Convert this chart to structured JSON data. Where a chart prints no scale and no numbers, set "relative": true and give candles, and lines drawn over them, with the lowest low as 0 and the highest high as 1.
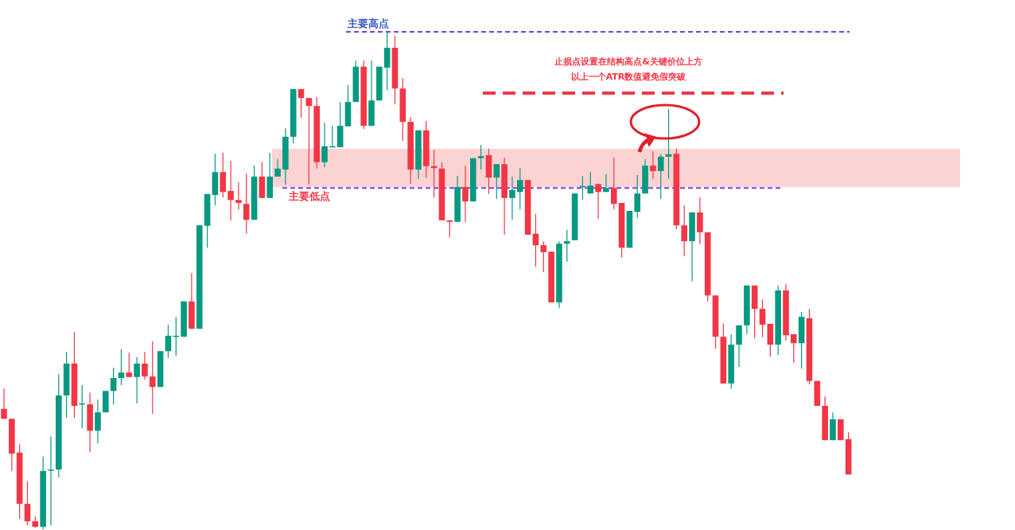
{
  "chart_data": {
    "type": "candlestick",
    "relative": true,
    "categories": [
      null,
      null,
      null,
      null,
      null,
      null,
      null,
      null,
      null,
      null,
      null,
      null,
      null,
      null,
      null,
      null,
      null,
      null,
      null,
      null,
      null,
      null,
      null,
      null,
      null,
      null,
      null,
      null,
      null,
      null,
      null,
      null,
      null,
      null,
      null,
      null,
      null,
      null,
      null,
      null,
      null,
      null,
      null,
      null,
      null,
      null,
      null,
      null,
      null,
      null,
      null,
      null,
      null,
      null,
      null,
      null,
      null,
      null,
      null,
      null,
      null,
      null,
      null,
      null,
      null,
      null,
      null,
      null,
      null,
      null,
      null,
      null,
      null,
      null,
      null,
      null,
      null,
      null,
      null,
      null,
      null,
      null,
      null,
      null,
      null,
      null,
      null,
      null,
      null,
      null,
      null,
      null,
      null,
      null,
      null,
      null,
      null,
      null,
      null,
      null,
      null,
      null,
      null,
      null,
      null,
      null,
      null,
      null,
      null
    ],
    "ohlc": [
      [
        0.242,
        0.283,
        0.222,
        0.222
      ],
      [
        0.222,
        0.222,
        0.117,
        0.152
      ],
      [
        0.154,
        0.171,
        0.021,
        0.051
      ],
      [
        0.051,
        0.096,
        0.008,
        0.016
      ],
      [
        0.016,
        0.026,
        0.003,
        0.005
      ],
      [
        0.005,
        0.146,
        0,
        0.117
      ],
      [
        0.118,
        0.187,
        0.008,
        0.12
      ],
      [
        0.12,
        0.312,
        0.104,
        0.269
      ],
      [
        0.269,
        0.357,
        0.224,
        0.333
      ],
      [
        0.333,
        0.397,
        0.224,
        0.248
      ],
      [
        0.251,
        0.29,
        0.203,
        0.253
      ],
      [
        0.251,
        0.275,
        0.155,
        0.198
      ],
      [
        0.198,
        0.261,
        0.173,
        0.235
      ],
      [
        0.235,
        0.278,
        0.235,
        0.278
      ],
      [
        0.278,
        0.325,
        0.251,
        0.304
      ],
      [
        0.304,
        0.362,
        0.29,
        0.315
      ],
      [
        0.315,
        0.355,
        0.306,
        0.306
      ],
      [
        0.306,
        0.346,
        0.253,
        0.333
      ],
      [
        0.333,
        0.357,
        0.301,
        0.307
      ],
      [
        0.307,
        0.378,
        0.232,
        0.286
      ],
      [
        0.286,
        0.358,
        0.286,
        0.358
      ],
      [
        0.358,
        0.411,
        0.344,
        0.389
      ],
      [
        0.387,
        0.427,
        0.349,
        0.389
      ],
      [
        0.387,
        0.458,
        0.387,
        0.458
      ],
      [
        0.458,
        0.515,
        0.403,
        0.403
      ],
      [
        0.403,
        0.611,
        0.403,
        0.611
      ],
      [
        0.61,
        0.674,
        0.566,
        0.674
      ],
      [
        0.672,
        0.755,
        0.651,
        0.718
      ],
      [
        0.718,
        0.757,
        0.667,
        0.678
      ],
      [
        0.68,
        0.741,
        0.621,
        0.662
      ],
      [
        0.662,
        0.698,
        0.643,
        0.656
      ],
      [
        0.654,
        0.715,
        0.594,
        0.622
      ],
      [
        0.622,
        0.731,
        0.622,
        0.709
      ],
      [
        0.709,
        0.738,
        0.666,
        0.666
      ],
      [
        0.666,
        0.757,
        0.666,
        0.709
      ],
      [
        0.709,
        0.744,
        0.709,
        0.725
      ],
      [
        0.723,
        0.806,
        0.693,
        0.789
      ],
      [
        0.789,
        0.885,
        0.776,
        0.885
      ],
      [
        0.885,
        0.885,
        0.827,
        0.867
      ],
      [
        0.867,
        0.867,
        0.693,
        0.851
      ],
      [
        0.851,
        0.869,
        0.725,
        0.738
      ],
      [
        0.738,
        0.818,
        0.728,
        0.77
      ],
      [
        0.768,
        0.811,
        0.768,
        0.77
      ],
      [
        0.768,
        0.859,
        0.768,
        0.811
      ],
      [
        0.81,
        0.893,
        0.81,
        0.859
      ],
      [
        0.859,
        0.942,
        0.859,
        0.93
      ],
      [
        0.93,
        0.942,
        0.805,
        0.811
      ],
      [
        0.811,
        0.942,
        0.811,
        0.862
      ],
      [
        0.862,
        0.93,
        0.862,
        0.93
      ],
      [
        0.928,
        1,
        0.883,
        0.968
      ],
      [
        0.968,
        0.992,
        0.854,
        0.886
      ],
      [
        0.886,
        0.907,
        0.781,
        0.819
      ],
      [
        0.819,
        0.829,
        0.694,
        0.723
      ],
      [
        0.723,
        0.802,
        0.704,
        0.802
      ],
      [
        0.802,
        0.821,
        0.707,
        0.73
      ],
      [
        0.73,
        0.762,
        0.667,
        0.726
      ],
      [
        0.725,
        0.738,
        0.621,
        0.621
      ],
      [
        0.621,
        0.621,
        0.587,
        0.618
      ],
      [
        0.618,
        0.71,
        0.618,
        0.688
      ],
      [
        0.688,
        0.731,
        0.618,
        0.659
      ],
      [
        0.659,
        0.746,
        0.659,
        0.746
      ],
      [
        0.746,
        0.773,
        0.723,
        0.75
      ],
      [
        0.752,
        0.765,
        0.674,
        0.707
      ],
      [
        0.707,
        0.734,
        0.664,
        0.734
      ],
      [
        0.734,
        0.747,
        0.592,
        0.666
      ],
      [
        0.666,
        0.709,
        0.622,
        0.682
      ],
      [
        0.678,
        0.726,
        0.643,
        0.702
      ],
      [
        0.702,
        0.702,
        0.592,
        0.592
      ],
      [
        0.594,
        0.634,
        0.528,
        0.571
      ],
      [
        0.571,
        0.579,
        0.517,
        0.557
      ],
      [
        0.558,
        0.558,
        0.456,
        0.456
      ],
      [
        0.456,
        0.579,
        0.445,
        0.574
      ],
      [
        0.574,
        0.602,
        0.538,
        0.579
      ],
      [
        0.581,
        0.675,
        0.581,
        0.675
      ],
      [
        0.688,
        0.71,
        0.662,
        0.69
      ],
      [
        0.675,
        0.718,
        0.675,
        0.691
      ],
      [
        0.694,
        0.694,
        0.624,
        0.678
      ],
      [
        0.678,
        0.714,
        0.678,
        0.686
      ],
      [
        0.686,
        0.747,
        0.643,
        0.654
      ],
      [
        0.656,
        0.656,
        0.546,
        0.566
      ],
      [
        0.566,
        0.64,
        0.566,
        0.64
      ],
      [
        0.638,
        0.712,
        0.626,
        0.675
      ],
      [
        0.675,
        0.744,
        0.675,
        0.731
      ],
      [
        0.731,
        0.76,
        0.704,
        0.72
      ],
      [
        0.72,
        0.754,
        0.664,
        0.749
      ],
      [
        0.749,
        0.845,
        0.704,
        0.754
      ],
      [
        0.755,
        0.765,
        0.603,
        0.611
      ],
      [
        0.611,
        0.651,
        0.549,
        0.579
      ],
      [
        0.579,
        0.637,
        0.499,
        0.637
      ],
      [
        0.637,
        0.667,
        0.573,
        0.597
      ],
      [
        0.597,
        0.597,
        0.458,
        0.47
      ],
      [
        0.47,
        0.47,
        0.363,
        0.387
      ],
      [
        0.387,
        0.414,
        0.293,
        0.293
      ],
      [
        0.293,
        0.392,
        0.282,
        0.371
      ],
      [
        0.371,
        0.41,
        0.326,
        0.41
      ],
      [
        0.41,
        0.49,
        0.392,
        0.49
      ],
      [
        0.49,
        0.49,
        0.384,
        0.443
      ],
      [
        0.443,
        0.462,
        0.386,
        0.411
      ],
      [
        0.413,
        0.413,
        0.347,
        0.371
      ],
      [
        0.371,
        0.49,
        0.35,
        0.48
      ],
      [
        0.48,
        0.493,
        0.379,
        0.39
      ],
      [
        0.392,
        0.392,
        0.334,
        0.374
      ],
      [
        0.374,
        0.437,
        0.323,
        0.427
      ],
      [
        0.424,
        0.443,
        0.291,
        0.298
      ],
      [
        0.298,
        0.298,
        0.248,
        0.248
      ],
      [
        0.248,
        0.267,
        0.179,
        0.179
      ],
      [
        0.179,
        0.235,
        0.179,
        0.221
      ],
      [
        0.221,
        0.221,
        0.179,
        0.179
      ],
      [
        0.181,
        0.195,
        0.11,
        0.11
      ]
    ],
    "ref_lines": [
      {
        "axis": "y",
        "value": 1,
        "label": "主要高点",
        "color": "#7b3fe4",
        "line_style": "dashed"
      },
      {
        "axis": "y",
        "value": 0.686,
        "label": "主要低点",
        "color": "#7b3fe4",
        "line_style": "dashed"
      },
      {
        "axis": "y",
        "value": 0.877,
        "color": "#f23645",
        "line_style": "dashed"
      }
    ],
    "annotations": [
      "止损点设置在结构高点&关键价位上方",
      "以上一个ATR数值避免假突破"
    ],
    "bands": [
      {
        "axis": "y",
        "from": 0.688,
        "to": 0.765,
        "color": "#fbd3d3"
      }
    ]
  }
}
